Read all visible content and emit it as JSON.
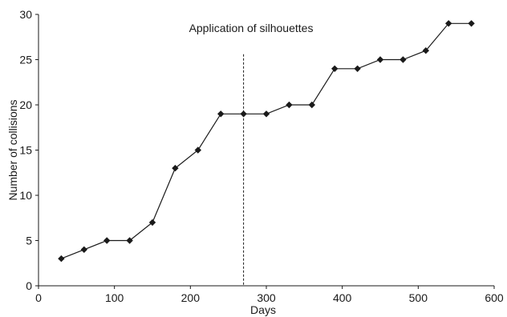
{
  "chart_data": {
    "type": "line",
    "xlabel": "Days",
    "ylabel": "Number of collisions",
    "xlim": [
      0,
      600
    ],
    "ylim": [
      0,
      30
    ],
    "xticks": [
      0,
      100,
      200,
      300,
      400,
      500,
      600
    ],
    "yticks": [
      0,
      5,
      10,
      15,
      20,
      25,
      30
    ],
    "grid": false,
    "series": [
      {
        "x": [
          30,
          60,
          90,
          120,
          150,
          180,
          210,
          240,
          270,
          300,
          330,
          360,
          390,
          420,
          450,
          480,
          510,
          540,
          570
        ],
        "y": [
          3,
          4,
          5,
          5,
          7,
          13,
          15,
          19,
          19,
          19,
          20,
          20,
          24,
          24,
          25,
          25,
          26,
          29,
          29
        ],
        "color": "#1a1a1a",
        "marker": "diamond"
      }
    ],
    "annotations": [
      {
        "text": "Application of silhouettes",
        "vline_x": 270,
        "vline_y_top": 25.6,
        "style": "dashed"
      }
    ]
  }
}
